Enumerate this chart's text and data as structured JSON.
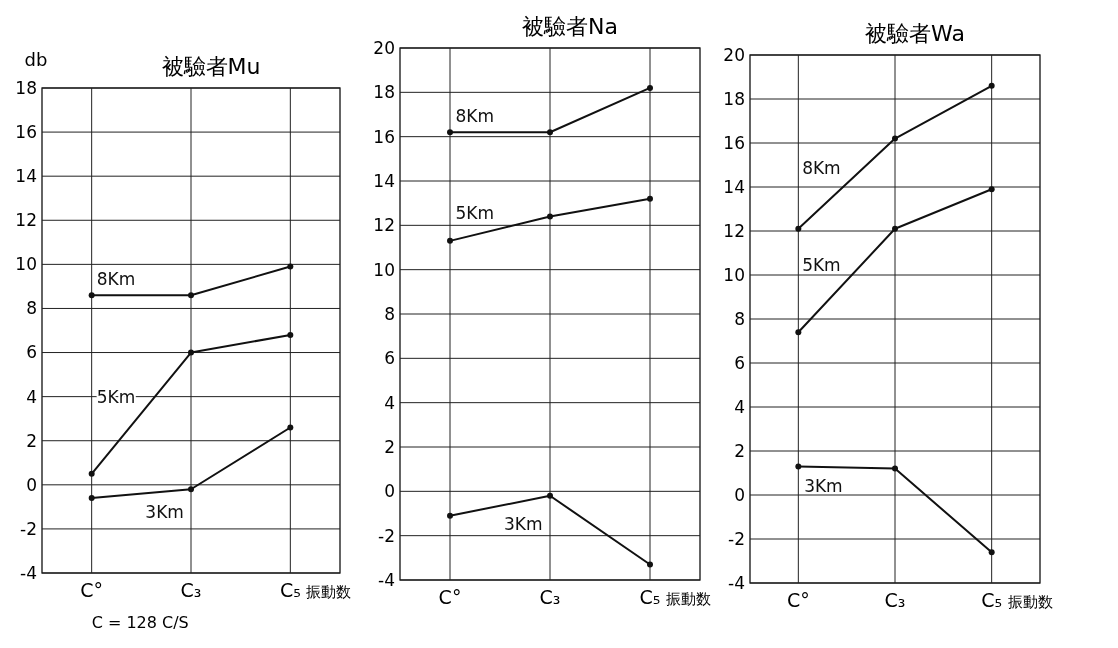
{
  "chart_data": [
    {
      "type": "line",
      "title": "被驗者Mu",
      "ylabel": "db",
      "xlabel": "振動数",
      "categories": [
        "C°",
        "C₃",
        "C₅"
      ],
      "ylim": [
        -4,
        18
      ],
      "yticks": [
        -4,
        -2,
        0,
        2,
        4,
        6,
        8,
        10,
        12,
        14,
        16,
        18
      ],
      "grid": true,
      "marker": "circle",
      "annotations": [
        "C = 128 C/S"
      ],
      "series": [
        {
          "name": "8Km",
          "color": "#111111",
          "values": [
            8.6,
            8.6,
            9.9
          ]
        },
        {
          "name": "5Km",
          "color": "#111111",
          "values": [
            0.5,
            6.0,
            6.8
          ]
        },
        {
          "name": "3Km",
          "color": "#111111",
          "values": [
            -0.6,
            -0.2,
            2.6
          ]
        }
      ]
    },
    {
      "type": "line",
      "title": "被驗者Na",
      "xlabel": "振動数",
      "categories": [
        "C°",
        "C₃",
        "C₅"
      ],
      "ylim": [
        -4,
        20
      ],
      "yticks": [
        -4,
        -2,
        0,
        2,
        4,
        6,
        8,
        10,
        12,
        14,
        16,
        18,
        20
      ],
      "grid": true,
      "marker": "circle",
      "series": [
        {
          "name": "8Km",
          "color": "#111111",
          "values": [
            16.2,
            16.2,
            18.2
          ]
        },
        {
          "name": "5Km",
          "color": "#111111",
          "values": [
            11.3,
            12.4,
            13.2
          ]
        },
        {
          "name": "3Km",
          "color": "#111111",
          "values": [
            -1.1,
            -0.2,
            -3.3
          ]
        }
      ]
    },
    {
      "type": "line",
      "title": "被驗者Wa",
      "xlabel": "振動数",
      "categories": [
        "C°",
        "C₃",
        "C₅"
      ],
      "ylim": [
        -4,
        20
      ],
      "yticks": [
        -4,
        -2,
        0,
        2,
        4,
        6,
        8,
        10,
        12,
        14,
        16,
        18,
        20
      ],
      "grid": true,
      "marker": "circle",
      "series": [
        {
          "name": "8Km",
          "color": "#111111",
          "values": [
            12.1,
            16.2,
            18.6
          ]
        },
        {
          "name": "5Km",
          "color": "#111111",
          "values": [
            7.4,
            12.1,
            13.9
          ]
        },
        {
          "name": "3Km",
          "color": "#111111",
          "values": [
            1.3,
            1.2,
            -2.6
          ]
        }
      ]
    }
  ]
}
